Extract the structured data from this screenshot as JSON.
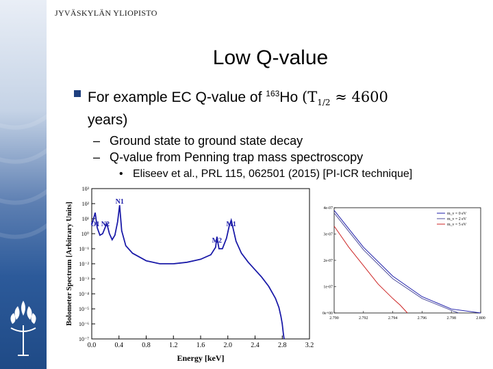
{
  "header": {
    "university": "JYVÄSKYLÄN YLIOPISTO"
  },
  "slide": {
    "title": "Low Q-value",
    "bullet1": {
      "text_before": "For example EC Q-value of ",
      "isotope_mass": "163",
      "isotope": "Ho",
      "formula": "(T",
      "subscript": "1/2",
      "formula_rest": " ≈ 4600",
      "line2": "years)"
    },
    "sub_bullets": [
      "Ground state to ground state decay",
      "Q-value from Penning trap mass spectroscopy"
    ],
    "sub_sub_bullet": "Eliseev et al., PRL 115, 062501 (2015) [PI-ICR technique]"
  },
  "colors": {
    "accent": "#1f3f7f",
    "curve": "#1a1aa8",
    "sidebar": "#2c5a9a"
  },
  "chart_data": [
    {
      "type": "line",
      "xlabel": "Energy [keV]",
      "ylabel": "Bolometer Spectrum [Arbitrary Units]",
      "xlim": [
        0.0,
        3.2
      ],
      "ylim_log10": [
        -7,
        3
      ],
      "x_ticks": [
        "0.0",
        "0.4",
        "0.8",
        "1.2",
        "1.6",
        "2.0",
        "2.4",
        "2.8",
        "3.2"
      ],
      "y_ticks": [
        "10⁻⁷",
        "10⁻⁶",
        "10⁻⁵",
        "10⁻⁴",
        "10⁻³",
        "10⁻²",
        "10⁻¹",
        "10⁰",
        "10¹",
        "10²",
        "10³"
      ],
      "peak_labels": [
        {
          "label": "O1",
          "x": 0.05,
          "y_log10": 0.5
        },
        {
          "label": "N2",
          "x": 0.2,
          "y_log10": 0.5
        },
        {
          "label": "N1",
          "x": 0.41,
          "y_log10": 2.0
        },
        {
          "label": "M2",
          "x": 1.84,
          "y_log10": -0.6
        },
        {
          "label": "M1",
          "x": 2.05,
          "y_log10": 0.5
        }
      ],
      "series": [
        {
          "x": [
            0.0,
            0.02,
            0.05,
            0.08,
            0.12,
            0.16,
            0.2,
            0.22,
            0.26,
            0.3,
            0.34,
            0.38,
            0.41,
            0.44,
            0.5,
            0.6,
            0.8,
            1.0,
            1.2,
            1.4,
            1.6,
            1.75,
            1.82,
            1.84,
            1.87,
            1.92,
            1.98,
            2.02,
            2.05,
            2.08,
            2.12,
            2.2,
            2.3,
            2.4,
            2.5,
            2.6,
            2.7,
            2.75,
            2.78,
            2.8,
            2.815,
            2.825,
            2.83
          ],
          "y_log10": [
            0.6,
            0.9,
            1.4,
            0.4,
            -0.1,
            0.0,
            0.45,
            0.7,
            0.0,
            -0.4,
            -0.1,
            0.8,
            1.9,
            0.2,
            -0.8,
            -1.3,
            -1.8,
            -2.0,
            -2.0,
            -1.9,
            -1.7,
            -1.4,
            -0.9,
            -0.2,
            -1.0,
            -1.0,
            -0.3,
            0.5,
            0.9,
            0.3,
            -0.5,
            -1.3,
            -1.9,
            -2.4,
            -2.9,
            -3.5,
            -4.3,
            -4.9,
            -5.5,
            -6.0,
            -6.6,
            -6.95,
            -7.0
          ]
        }
      ]
    },
    {
      "type": "line",
      "xlim": [
        2.79,
        2.8
      ],
      "ylim": [
        0,
        4e-07
      ],
      "x_ticks": [
        "2.790",
        "2.792",
        "2.794",
        "2.796",
        "2.798",
        "2.800"
      ],
      "y_ticks": [
        "0e+00",
        "1e-07",
        "2e-07",
        "3e-07",
        "4e-07"
      ],
      "series": [
        {
          "name": "m_ν = 0 eV",
          "color": "#1a1aa8",
          "x": [
            2.79,
            2.792,
            2.794,
            2.796,
            2.798,
            2.8
          ],
          "y": [
            3.9e-07,
            2.5e-07,
            1.4e-07,
            6.2e-08,
            1.5e-08,
            0
          ]
        },
        {
          "name": "m_ν = 2 eV",
          "color": "#4b4b9b",
          "x": [
            2.79,
            2.792,
            2.794,
            2.796,
            2.798,
            2.7985
          ],
          "y": [
            3.8e-07,
            2.4e-07,
            1.3e-07,
            5.5e-08,
            1e-08,
            0
          ]
        },
        {
          "name": "m_ν = 5 eV",
          "color": "#cc2222",
          "x": [
            2.79,
            2.791,
            2.792,
            2.793,
            2.794,
            2.7945,
            2.795
          ],
          "y": [
            3.3e-07,
            2.5e-07,
            1.8e-07,
            1.1e-07,
            5.5e-08,
            3e-08,
            0
          ]
        }
      ]
    }
  ]
}
